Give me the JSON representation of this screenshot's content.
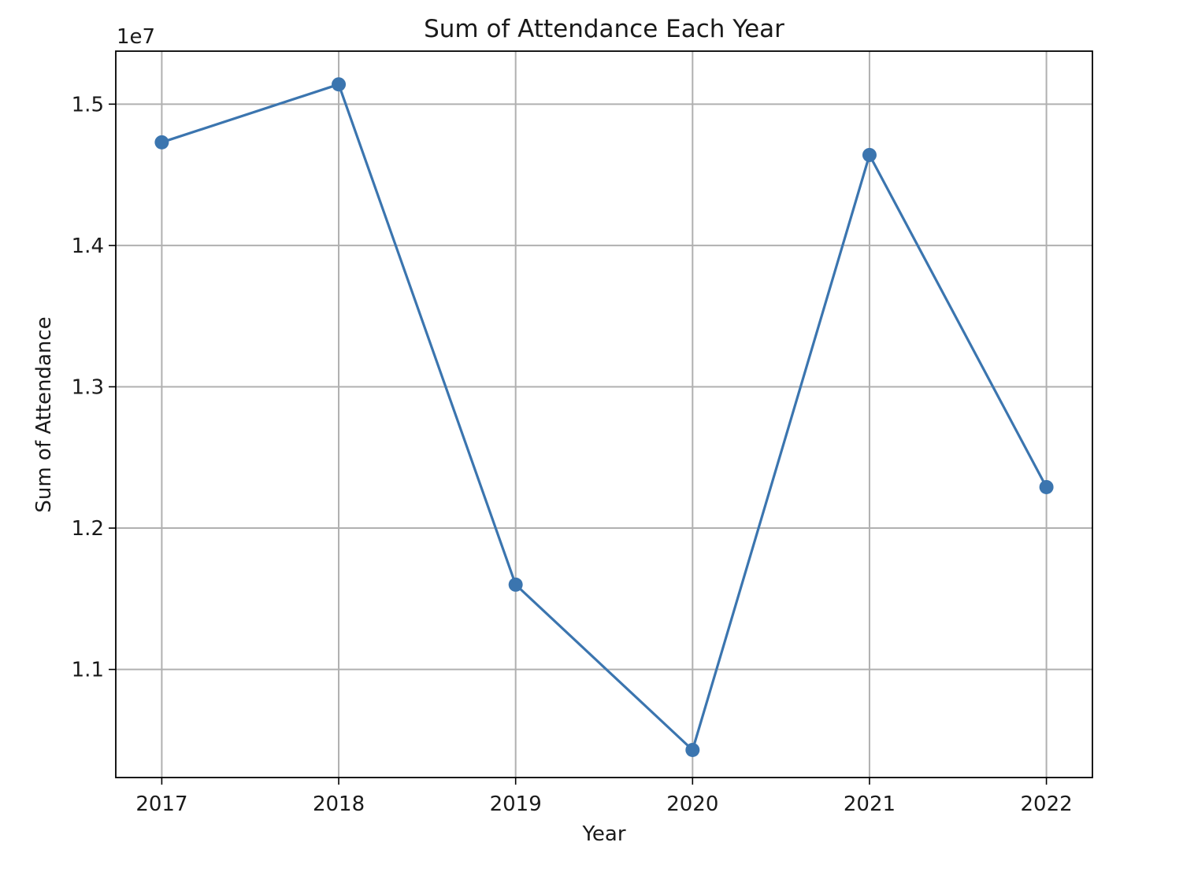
{
  "chart_data": {
    "type": "line",
    "title": "Sum of Attendance Each Year",
    "xlabel": "Year",
    "ylabel": "Sum of Attendance",
    "y_offset_label": "1e7",
    "grid": true,
    "x": [
      2017,
      2018,
      2019,
      2020,
      2021,
      2022
    ],
    "x_ticks": [
      "2017",
      "2018",
      "2019",
      "2020",
      "2021",
      "2022"
    ],
    "y_ticks": [
      1.1,
      1.2,
      1.3,
      1.4,
      1.5
    ],
    "y_tick_labels": [
      "1.1",
      "1.2",
      "1.3",
      "1.4",
      "1.5"
    ],
    "xlim": [
      2016.74,
      2022.26
    ],
    "ylim": [
      1.0235,
      1.5375
    ],
    "series": [
      {
        "values": [
          1.473,
          1.514,
          1.16,
          1.043,
          1.464,
          1.229
        ],
        "color": "#3b75af",
        "marker": "circle"
      }
    ]
  }
}
